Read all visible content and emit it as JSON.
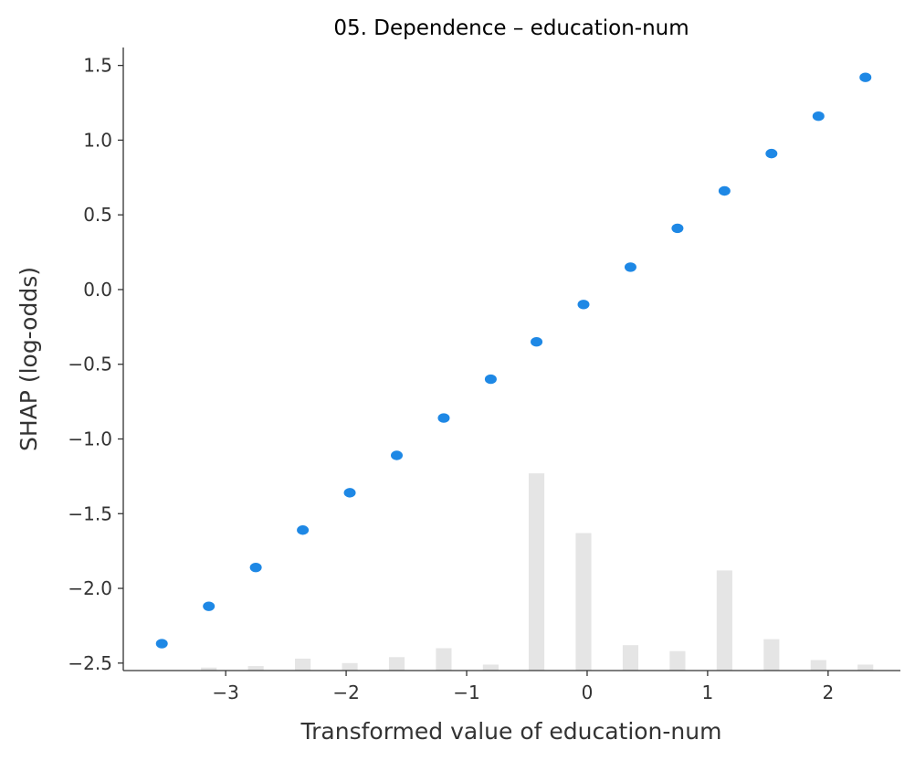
{
  "chart_data": {
    "type": "scatter",
    "title": "05. Dependence – education-num",
    "xlabel": "Transformed value of education-num",
    "ylabel": "SHAP (log-odds)",
    "xlim": [
      -3.85,
      2.6
    ],
    "ylim": [
      -2.55,
      1.62
    ],
    "xticks": [
      -3,
      -2,
      -1,
      0,
      1,
      2
    ],
    "xtick_labels": [
      "−3",
      "−2",
      "−1",
      "0",
      "1",
      "2"
    ],
    "yticks": [
      -2.5,
      -2.0,
      -1.5,
      -1.0,
      -0.5,
      0.0,
      0.5,
      1.0,
      1.5
    ],
    "ytick_labels": [
      "−2.5",
      "−2.0",
      "−1.5",
      "−1.0",
      "−0.5",
      "0.0",
      "0.5",
      "1.0",
      "1.5"
    ],
    "point_color": "#1e88e5",
    "hist_color": "#e5e5e5",
    "spine_color": "#333333",
    "points": [
      {
        "x": -3.53,
        "y": -2.37
      },
      {
        "x": -3.14,
        "y": -2.12
      },
      {
        "x": -2.75,
        "y": -1.86
      },
      {
        "x": -2.36,
        "y": -1.61
      },
      {
        "x": -1.97,
        "y": -1.36
      },
      {
        "x": -1.58,
        "y": -1.11
      },
      {
        "x": -1.19,
        "y": -0.86
      },
      {
        "x": -0.8,
        "y": -0.6
      },
      {
        "x": -0.42,
        "y": -0.35
      },
      {
        "x": -0.03,
        "y": -0.1
      },
      {
        "x": 0.36,
        "y": 0.15
      },
      {
        "x": 0.75,
        "y": 0.41
      },
      {
        "x": 1.14,
        "y": 0.66
      },
      {
        "x": 1.53,
        "y": 0.91
      },
      {
        "x": 1.92,
        "y": 1.16
      },
      {
        "x": 2.31,
        "y": 1.42
      }
    ],
    "histogram": {
      "bar_width": 0.13,
      "bars": [
        {
          "x": -3.14,
          "top": -2.53
        },
        {
          "x": -2.75,
          "top": -2.52
        },
        {
          "x": -2.36,
          "top": -2.47
        },
        {
          "x": -1.97,
          "top": -2.5
        },
        {
          "x": -1.58,
          "top": -2.46
        },
        {
          "x": -1.19,
          "top": -2.4
        },
        {
          "x": -0.8,
          "top": -2.51
        },
        {
          "x": -0.42,
          "top": -1.23
        },
        {
          "x": -0.03,
          "top": -1.63
        },
        {
          "x": 0.36,
          "top": -2.38
        },
        {
          "x": 0.75,
          "top": -2.42
        },
        {
          "x": 1.14,
          "top": -1.88
        },
        {
          "x": 1.53,
          "top": -2.34
        },
        {
          "x": 1.92,
          "top": -2.48
        },
        {
          "x": 2.31,
          "top": -2.51
        }
      ]
    }
  }
}
